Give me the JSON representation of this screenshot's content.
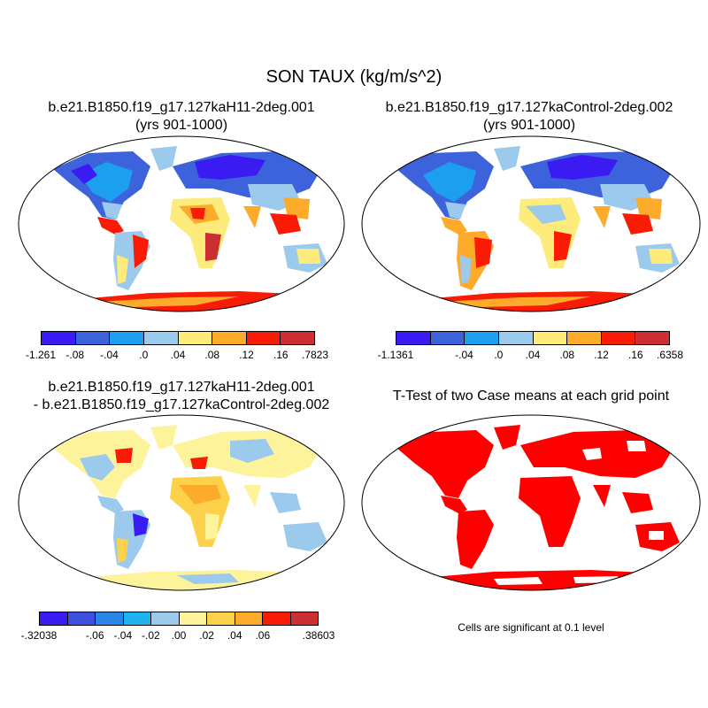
{
  "title": "SON TAUX (kg/m/s^2)",
  "panels": [
    {
      "title_line1": "b.e21.B1850.f19_g17.127kaH11-2deg.001",
      "title_line2": "(yrs 901-1000)"
    },
    {
      "title_line1": "b.e21.B1850.f19_g17.127kaControl-2deg.002",
      "title_line2": "(yrs 901-1000)"
    },
    {
      "title_line1": "b.e21.B1850.f19_g17.127kaH11-2deg.001",
      "title_line2": "- b.e21.B1850.f19_g17.127kaControl-2deg.002"
    },
    {
      "title_line1": "T-Test of two Case means at each grid point",
      "title_line2": ""
    }
  ],
  "colorbars": {
    "case1": {
      "colors": [
        "#3a1cf2",
        "#3d63dc",
        "#1c9fee",
        "#9ccaec",
        "#fdeb7c",
        "#fdab2b",
        "#fa1b04",
        "#cc2f32"
      ],
      "labels": [
        "-1.261",
        "-.08",
        "-.04",
        ".0",
        ".04",
        ".08",
        ".12",
        ".16",
        ".7823"
      ]
    },
    "case2": {
      "colors": [
        "#3a1cf2",
        "#3d63dc",
        "#1c9fee",
        "#9ccaec",
        "#fdeb7c",
        "#fdab2b",
        "#fa1b04",
        "#cc2f32"
      ],
      "labels": [
        "-1.1361",
        "",
        "-.04",
        ".0",
        ".04",
        ".08",
        ".12",
        ".16",
        ".6358"
      ]
    },
    "diff": {
      "colors": [
        "#3a1cf2",
        "#3d4fdc",
        "#2a86e6",
        "#20b3ef",
        "#9ccaec",
        "#fdf39a",
        "#fdd14a",
        "#fdab2b",
        "#fa1b04",
        "#cc2f32"
      ],
      "labels": [
        "-.32038",
        "",
        "-.06",
        "-.04",
        "-.02",
        ".00",
        ".02",
        ".04",
        ".06",
        "",
        ".38603"
      ]
    }
  },
  "ttest_note": "Cells are significant at 0.1 level",
  "map_colors": {
    "blue_dark": "#3d4fdc",
    "blue_mid": "#1c9fee",
    "blue_light": "#9ccaec",
    "yellow": "#fdeb7c",
    "orange": "#fdab2b",
    "red": "#fa1b04",
    "darkred": "#cc2f32",
    "significant": "#ff0000"
  }
}
